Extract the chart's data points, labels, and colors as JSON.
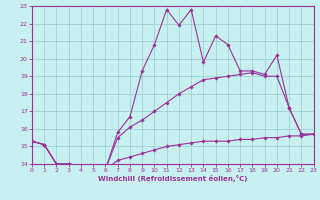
{
  "xlabel": "Windchill (Refroidissement éolien,°C)",
  "bg_color": "#c8f0f0",
  "line_color": "#993399",
  "grid_color": "#99cccc",
  "xlim": [
    0,
    23
  ],
  "ylim": [
    14,
    23
  ],
  "xticks": [
    0,
    1,
    2,
    3,
    4,
    5,
    6,
    7,
    8,
    9,
    10,
    11,
    12,
    13,
    14,
    15,
    16,
    17,
    18,
    19,
    20,
    21,
    22,
    23
  ],
  "yticks": [
    14,
    15,
    16,
    17,
    18,
    19,
    20,
    21,
    22,
    23
  ],
  "series": [
    {
      "x": [
        0,
        1,
        2,
        3,
        4,
        5,
        6,
        7,
        8,
        9,
        10,
        11,
        12,
        13,
        14,
        15,
        16,
        17,
        18,
        19,
        20,
        21,
        22,
        23
      ],
      "y": [
        15.3,
        15.1,
        14.0,
        14.0,
        13.9,
        13.8,
        13.7,
        14.2,
        14.4,
        14.6,
        14.8,
        15.0,
        15.1,
        15.2,
        15.3,
        15.3,
        15.3,
        15.4,
        15.4,
        15.5,
        15.5,
        15.6,
        15.6,
        15.7
      ]
    },
    {
      "x": [
        0,
        1,
        2,
        3,
        4,
        5,
        6,
        7,
        8,
        9,
        10,
        11,
        12,
        13,
        14,
        15,
        16,
        17,
        18,
        19,
        20,
        21,
        22,
        23
      ],
      "y": [
        15.3,
        15.1,
        14.0,
        14.0,
        13.9,
        13.8,
        13.7,
        15.5,
        16.1,
        16.5,
        17.0,
        17.5,
        18.0,
        18.4,
        18.8,
        18.9,
        19.0,
        19.1,
        19.2,
        19.0,
        19.0,
        17.2,
        15.7,
        15.7
      ]
    },
    {
      "x": [
        0,
        1,
        2,
        3,
        4,
        5,
        6,
        7,
        8,
        9,
        10,
        11,
        12,
        13,
        14,
        15,
        16,
        17,
        18,
        19,
        20,
        21,
        22,
        23
      ],
      "y": [
        15.3,
        15.1,
        14.0,
        14.0,
        13.9,
        13.8,
        13.7,
        15.8,
        16.7,
        19.3,
        20.8,
        22.8,
        21.9,
        22.8,
        19.8,
        21.3,
        20.8,
        19.3,
        19.3,
        19.1,
        20.2,
        17.2,
        15.7,
        15.7
      ]
    }
  ]
}
